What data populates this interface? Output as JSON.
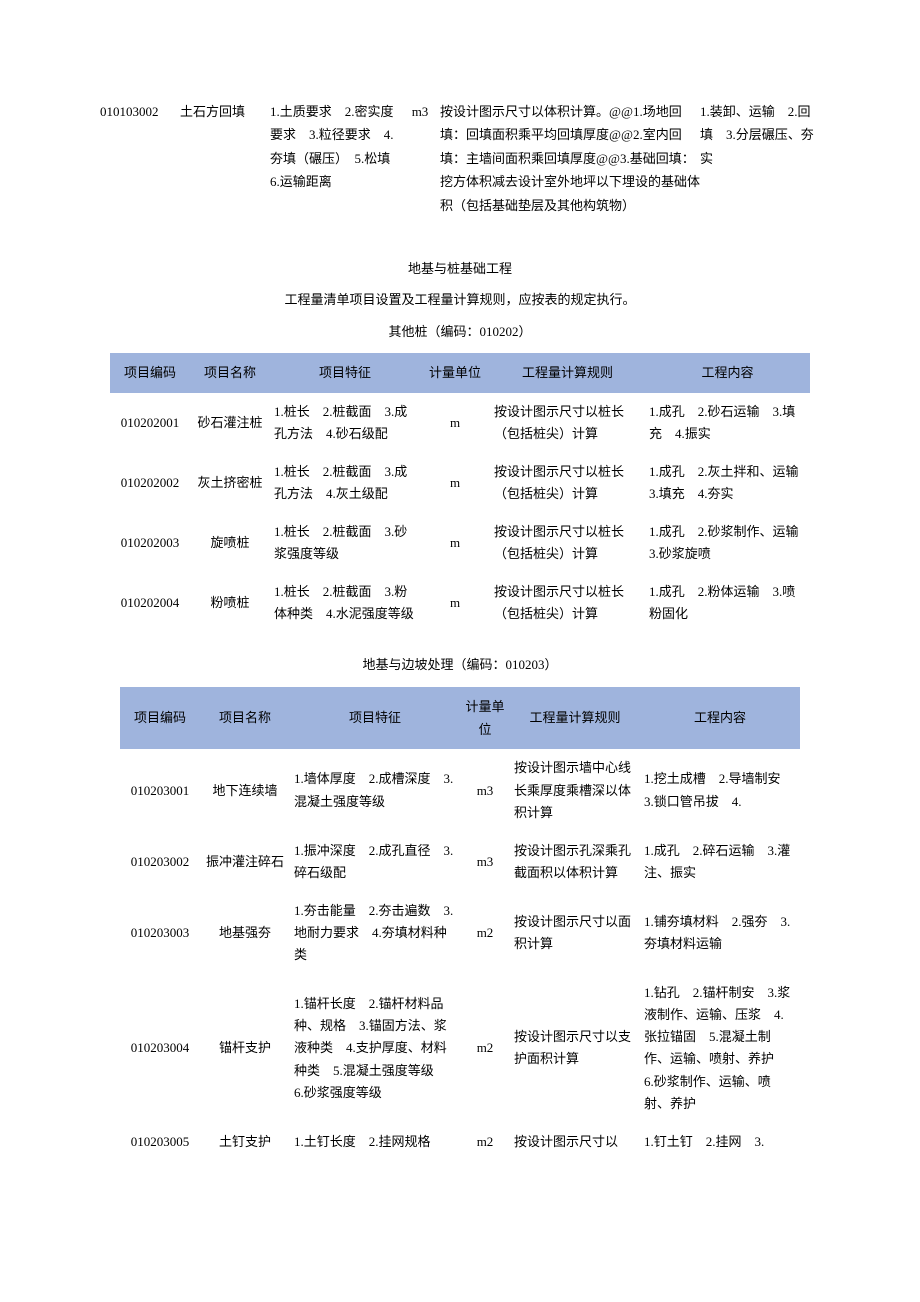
{
  "intro": {
    "code": "010103002",
    "name": "土石方回填",
    "feature": "1.土质要求　2.密实度要求　3.粒径要求　4.夯填（碾压）　5.松填　6.运输距离",
    "unit": "m3",
    "rule": "按设计图示尺寸以体积计算。@@1.场地回填：回填面积乘平均回填厚度@@2.室内回填：主墙间面积乘回填厚度@@3.基础回填：挖方体积减去设计室外地坪以下埋设的基础体积（包括基础垫层及其他构筑物）",
    "content": "1.装卸、运输　2.回填　3.分层碾压、夯实"
  },
  "section2": {
    "title1": "地基与桩基础工程",
    "title2": "工程量清单项目设置及工程量计算规则，应按表的规定执行。",
    "title3": "其他桩（编码：010202）"
  },
  "headers": {
    "h1": "项目编码",
    "h2": "项目名称",
    "h3": "项目特征",
    "h4": "计量单位",
    "h5": "工程量计算规则",
    "h6": "工程内容"
  },
  "table1": {
    "rows": [
      {
        "code": "010202001",
        "name": "砂石灌注桩",
        "feature": "1.桩长　2.桩截面　3.成孔方法　4.砂石级配",
        "unit": "m",
        "rule": "按设计图示尺寸以桩长（包括桩尖）计算",
        "content": "1.成孔　2.砂石运输　3.填充　4.振实"
      },
      {
        "code": "010202002",
        "name": "灰土挤密桩",
        "feature": "1.桩长　2.桩截面　3.成孔方法　4.灰土级配",
        "unit": "m",
        "rule": "按设计图示尺寸以桩长（包括桩尖）计算",
        "content": "1.成孔　2.灰土拌和、运输　3.填充　4.夯实"
      },
      {
        "code": "010202003",
        "name": "旋喷桩",
        "feature": "1.桩长　2.桩截面　3.砂浆强度等级",
        "unit": "m",
        "rule": "按设计图示尺寸以桩长（包括桩尖）计算",
        "content": "1.成孔　2.砂浆制作、运输　3.砂浆旋喷"
      },
      {
        "code": "010202004",
        "name": "粉喷桩",
        "feature": "1.桩长　2.桩截面　3.粉体种类　4.水泥强度等级",
        "unit": "m",
        "rule": "按设计图示尺寸以桩长（包括桩尖）计算",
        "content": "1.成孔　2.粉体运输　3.喷粉固化"
      }
    ]
  },
  "section3": {
    "title": "地基与边坡处理（编码：010203）"
  },
  "table2": {
    "rows": [
      {
        "code": "010203001",
        "name": "地下连续墙",
        "feature": "1.墙体厚度　2.成槽深度　3.混凝土强度等级",
        "unit": "m3",
        "rule": "按设计图示墙中心线长乘厚度乘槽深以体积计算",
        "content": "1.挖土成槽　2.导墙制安　3.锁口管吊拔　4."
      },
      {
        "code": "010203002",
        "name": "振冲灌注碎石",
        "feature": "1.振冲深度　2.成孔直径　3.碎石级配",
        "unit": "m3",
        "rule": "按设计图示孔深乘孔截面积以体积计算",
        "content": "1.成孔　2.碎石运输　3.灌注、振实"
      },
      {
        "code": "010203003",
        "name": "地基强夯",
        "feature": "1.夯击能量　2.夯击遍数　3.地耐力要求　4.夯填材料种类",
        "unit": "m2",
        "rule": "按设计图示尺寸以面积计算",
        "content": "1.铺夯填材料　2.强夯　3.夯填材料运输"
      },
      {
        "code": "010203004",
        "name": "锚杆支护",
        "feature": "1.锚杆长度　2.锚杆材料品种、规格　3.锚固方法、浆液种类　4.支护厚度、材料种类　5.混凝土强度等级　6.砂浆强度等级",
        "unit": "m2",
        "rule": "按设计图示尺寸以支护面积计算",
        "content": "1.钻孔　2.锚杆制安　3.浆液制作、运输、压浆　4.张拉锚固　5.混凝土制作、运输、喷射、养护　6.砂浆制作、运输、喷射、养护"
      },
      {
        "code": "010203005",
        "name": "土钉支护",
        "feature": "1.土钉长度　2.挂网规格",
        "unit": "m2",
        "rule": "按设计图示尺寸以",
        "content": "1.钉土钉　2.挂网　3."
      }
    ]
  }
}
